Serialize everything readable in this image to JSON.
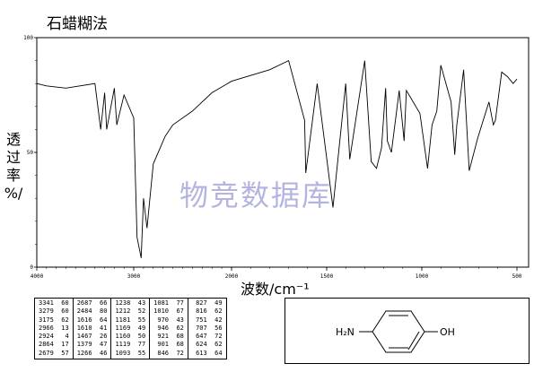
{
  "page": {
    "title": "石蜡糊法",
    "watermark": "物竞数据库",
    "ylabel_chars": [
      "透",
      "过",
      "率",
      "%/"
    ]
  },
  "chart_data": {
    "type": "line",
    "title": "石蜡糊法",
    "xlabel": "波数/cm⁻¹",
    "ylabel": "透过率 %",
    "xlim": [
      4000,
      500
    ],
    "ylim": [
      0,
      100
    ],
    "x_ticks": [
      "4000",
      "3000",
      "2000",
      "1500",
      "1000",
      "500"
    ],
    "y_ticks": [
      "100",
      "50",
      "0"
    ],
    "grid": false,
    "series": [
      {
        "x": [
          4000,
          3900,
          3700,
          3400,
          3341,
          3300,
          3279,
          3200,
          3175,
          3100,
          3000,
          2966,
          2924,
          2900,
          2864,
          2800,
          2679,
          2600,
          2400,
          2200,
          2000,
          1800,
          1700,
          1616,
          1610,
          1550,
          1467,
          1400,
          1379,
          1300,
          1266,
          1238,
          1212,
          1190,
          1181,
          1160,
          1119,
          1093,
          1081,
          1010,
          970,
          946,
          921,
          900,
          846,
          827,
          816,
          780,
          751,
          707,
          647,
          624,
          613,
          580,
          550,
          520,
          500
        ],
        "y": [
          80,
          79,
          78,
          80,
          60,
          76,
          60,
          78,
          62,
          75,
          65,
          13,
          4,
          30,
          17,
          45,
          57,
          62,
          68,
          76,
          81,
          86,
          90,
          64,
          41,
          80,
          26,
          80,
          47,
          90,
          46,
          43,
          52,
          78,
          55,
          50,
          77,
          55,
          77,
          67,
          43,
          62,
          68,
          88,
          72,
          49,
          62,
          86,
          42,
          56,
          72,
          62,
          64,
          85,
          83,
          80,
          82
        ]
      }
    ],
    "peaks": [
      [
        "3341",
        "60"
      ],
      [
        "3279",
        "60"
      ],
      [
        "3175",
        "62"
      ],
      [
        "2966",
        "13"
      ],
      [
        "2924",
        "4"
      ],
      [
        "2864",
        "17"
      ],
      [
        "2679",
        "57"
      ],
      [
        "2687",
        "66"
      ],
      [
        "2484",
        "80"
      ],
      [
        "1616",
        "64"
      ],
      [
        "1610",
        "41"
      ],
      [
        "1467",
        "26"
      ],
      [
        "1379",
        "47"
      ],
      [
        "1266",
        "46"
      ],
      [
        "1238",
        "43"
      ],
      [
        "1212",
        "52"
      ],
      [
        "1181",
        "55"
      ],
      [
        "1169",
        "49"
      ],
      [
        "1160",
        "50"
      ],
      [
        "1119",
        "77"
      ],
      [
        "1093",
        "55"
      ],
      [
        "1081",
        "77"
      ],
      [
        "1010",
        "67"
      ],
      [
        "970",
        "43"
      ],
      [
        "946",
        "62"
      ],
      [
        "921",
        "68"
      ],
      [
        "901",
        "68"
      ],
      [
        "846",
        "72"
      ],
      [
        "827",
        "49"
      ],
      [
        "816",
        "62"
      ],
      [
        "751",
        "42"
      ],
      [
        "707",
        "56"
      ],
      [
        "647",
        "72"
      ],
      [
        "624",
        "62"
      ],
      [
        "613",
        "64"
      ]
    ]
  },
  "structure": {
    "left_group": "H₂N",
    "right_group": "OH"
  }
}
